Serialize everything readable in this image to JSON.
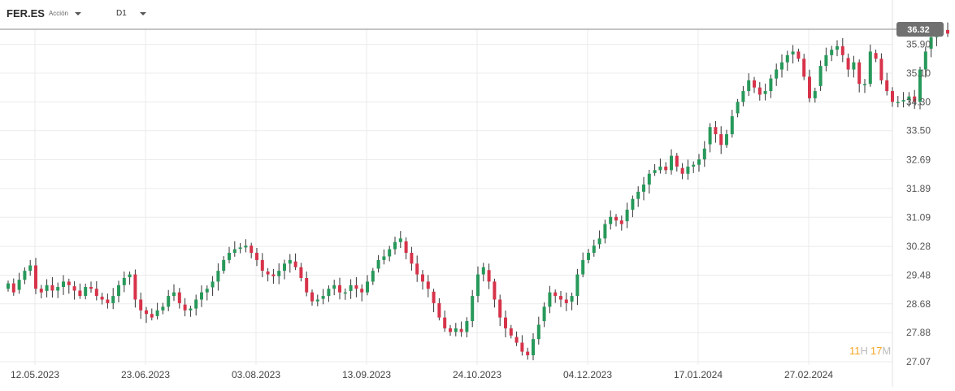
{
  "toolbar": {
    "symbol": "FER.ES",
    "instrument_type": "Acción",
    "timeframe": "D1"
  },
  "countdown": {
    "hours": "11",
    "h_unit": "H",
    "minutes": "17",
    "m_unit": "M"
  },
  "colors": {
    "up": "#27995a",
    "down": "#d7334a",
    "grid": "#ebebeb",
    "price_line": "#8a8a8a",
    "price_label_bg": "#707070",
    "countdown": "#f5a623"
  },
  "chart_data": {
    "type": "candlestick",
    "symbol": "FER.ES",
    "timeframe": "D1",
    "last_price": 36.32,
    "ylim": [
      27.07,
      36.32
    ],
    "y_ticks": [
      "35.90",
      "35.10",
      "34.30",
      "33.50",
      "32.69",
      "31.89",
      "31.09",
      "30.28",
      "29.48",
      "28.68",
      "27.88",
      "27.07"
    ],
    "x_ticks": [
      "12.05.2023",
      "23.06.2023",
      "03.08.2023",
      "13.09.2023",
      "24.10.2023",
      "04.12.2023",
      "17.01.2024",
      "27.02.2024"
    ],
    "closes": [
      29.25,
      29.0,
      29.35,
      29.6,
      29.75,
      29.1,
      29.0,
      29.2,
      29.05,
      29.15,
      29.3,
      29.2,
      29.05,
      28.9,
      29.15,
      29.1,
      28.9,
      28.8,
      28.7,
      28.9,
      29.2,
      29.4,
      29.5,
      28.8,
      28.5,
      28.4,
      28.3,
      28.5,
      28.6,
      28.9,
      29.0,
      28.7,
      28.5,
      28.55,
      28.8,
      29.0,
      29.1,
      29.3,
      29.6,
      29.9,
      30.1,
      30.2,
      30.25,
      30.3,
      30.1,
      29.9,
      29.6,
      29.5,
      29.45,
      29.6,
      29.8,
      29.9,
      29.7,
      29.4,
      29.0,
      28.75,
      28.8,
      28.9,
      29.1,
      29.2,
      29.0,
      29.0,
      29.2,
      29.1,
      29.0,
      29.3,
      29.6,
      29.9,
      30.0,
      30.2,
      30.4,
      30.5,
      30.1,
      29.8,
      29.5,
      29.3,
      29.1,
      28.7,
      28.3,
      28.0,
      27.9,
      28.0,
      27.9,
      28.2,
      28.9,
      29.5,
      29.7,
      29.3,
      28.8,
      28.3,
      28.0,
      27.8,
      27.6,
      27.35,
      27.25,
      27.7,
      28.1,
      28.6,
      29.0,
      28.9,
      28.8,
      28.7,
      28.9,
      29.5,
      29.9,
      30.1,
      30.3,
      30.5,
      30.9,
      31.1,
      31.0,
      30.9,
      31.3,
      31.6,
      31.8,
      32.0,
      32.3,
      32.4,
      32.5,
      32.4,
      32.8,
      32.5,
      32.3,
      32.5,
      32.55,
      32.7,
      33.0,
      33.6,
      33.4,
      33.1,
      33.4,
      33.9,
      34.3,
      34.6,
      34.9,
      34.7,
      34.5,
      34.6,
      34.95,
      35.2,
      35.4,
      35.6,
      35.7,
      35.5,
      35.0,
      34.4,
      34.6,
      35.3,
      35.6,
      35.75,
      35.85,
      35.6,
      35.2,
      35.4,
      34.8,
      34.8,
      35.7,
      35.5,
      34.9,
      34.6,
      34.3,
      34.3,
      34.35,
      34.45,
      34.3,
      35.2,
      35.7,
      36.1,
      36.25,
      36.3,
      36.2
    ]
  }
}
